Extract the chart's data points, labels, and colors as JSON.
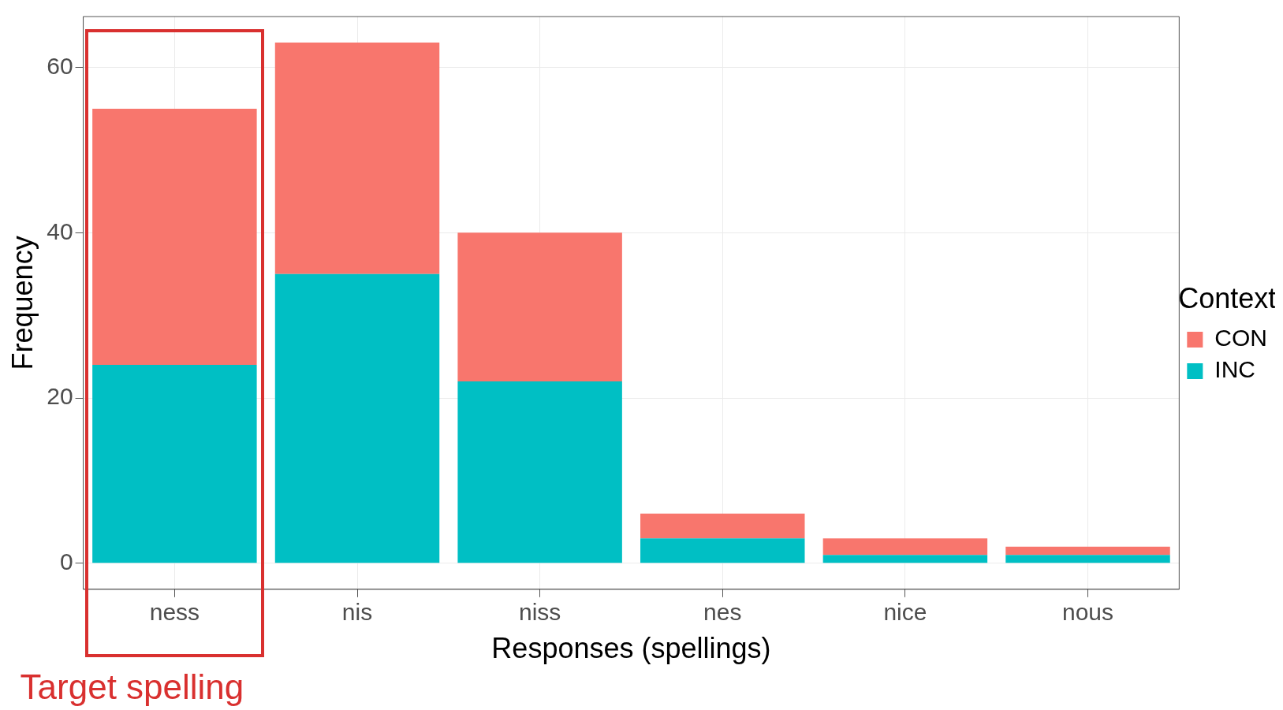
{
  "chart_data": {
    "type": "bar",
    "stacked": true,
    "xlabel": "Responses (spellings)",
    "ylabel": "Frequency",
    "legend_title": "Context",
    "legend": "right",
    "grid": true,
    "categories": [
      "ness",
      "nis",
      "niss",
      "nes",
      "nice",
      "nous"
    ],
    "series": [
      {
        "name": "INC",
        "color": "#00bfc4",
        "values": [
          24,
          35,
          22,
          3,
          1,
          1
        ]
      },
      {
        "name": "CON",
        "color": "#f8766d",
        "values": [
          31,
          28,
          18,
          3,
          2,
          1
        ]
      }
    ],
    "ylim": [
      -3.15,
      66.15
    ],
    "yticks": [
      0,
      20,
      40,
      60
    ],
    "annotations": [
      "Target spelling"
    ]
  }
}
